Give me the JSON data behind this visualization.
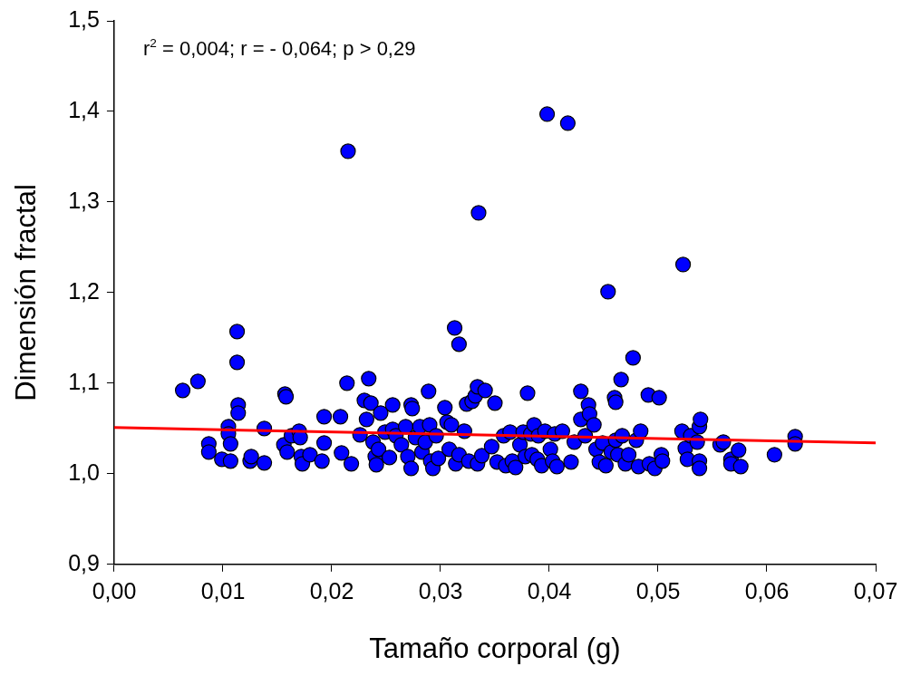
{
  "chart_data": {
    "type": "scatter",
    "xlabel": "Tamaño corporal (g)",
    "ylabel": "Dimensión fractal",
    "annotations": [
      "r$^{2}$ = 0,004; r = - 0,064; p > 0,29"
    ],
    "xlim": [
      0,
      0.07
    ],
    "ylim": [
      0.9,
      1.5
    ],
    "xticks": [
      {
        "value": 0,
        "label": "0,00"
      },
      {
        "value": 0.01,
        "label": "0,01"
      },
      {
        "value": 0.02,
        "label": "0,02"
      },
      {
        "value": 0.03,
        "label": "0,03"
      },
      {
        "value": 0.04,
        "label": "0,04"
      },
      {
        "value": 0.05,
        "label": "0,05"
      },
      {
        "value": 0.06,
        "label": "0,06"
      },
      {
        "value": 0.07,
        "label": "0,07"
      }
    ],
    "yticks": [
      {
        "value": 0.9,
        "label": "0,9"
      },
      {
        "value": 1,
        "label": "1,0"
      },
      {
        "value": 1.1,
        "label": "1,1"
      },
      {
        "value": 1.2,
        "label": "1,2"
      },
      {
        "value": 1.3,
        "label": "1,3"
      },
      {
        "value": 1.4,
        "label": "1,4"
      },
      {
        "value": 1.5,
        "label": "1,5"
      }
    ],
    "grid": false,
    "legend": false,
    "marker": "circle",
    "series": [
      {
        "type": "line",
        "marker": "none",
        "color": "#ff0000",
        "x": [
          0,
          0.07
        ],
        "values": [
          1.051,
          1.034
        ]
      },
      {
        "color": "#0000ff",
        "x": [
          0.0063,
          0.0077,
          0.0087,
          0.0087,
          0.0099,
          0.0105,
          0.0105,
          0.0107,
          0.0107,
          0.0113,
          0.0113,
          0.0114,
          0.0114,
          0.0125,
          0.0126,
          0.0138,
          0.0138,
          0.0157,
          0.0158,
          0.0156,
          0.0159,
          0.0163,
          0.017,
          0.0171,
          0.0172,
          0.0173,
          0.018,
          0.0191,
          0.0193,
          0.0193,
          0.0208,
          0.0209,
          0.0214,
          0.0215,
          0.0218,
          0.0226,
          0.023,
          0.0232,
          0.0234,
          0.0236,
          0.0238,
          0.024,
          0.0241,
          0.0243,
          0.0245,
          0.0249,
          0.0253,
          0.0256,
          0.0256,
          0.0259,
          0.0264,
          0.0268,
          0.027,
          0.0273,
          0.0274,
          0.0273,
          0.0277,
          0.0281,
          0.0283,
          0.0286,
          0.0289,
          0.029,
          0.0291,
          0.0293,
          0.0296,
          0.0298,
          0.0304,
          0.0306,
          0.0308,
          0.031,
          0.0313,
          0.0314,
          0.0317,
          0.0317,
          0.0322,
          0.0324,
          0.0326,
          0.0329,
          0.0332,
          0.0334,
          0.0334,
          0.0335,
          0.0338,
          0.0341,
          0.0347,
          0.035,
          0.0352,
          0.0358,
          0.036,
          0.0364,
          0.0366,
          0.0369,
          0.0373,
          0.0376,
          0.0378,
          0.038,
          0.0383,
          0.0384,
          0.0386,
          0.0389,
          0.039,
          0.0393,
          0.0396,
          0.0398,
          0.0401,
          0.0403,
          0.0405,
          0.0407,
          0.0412,
          0.0417,
          0.042,
          0.0423,
          0.0429,
          0.0429,
          0.0433,
          0.0436,
          0.0437,
          0.0441,
          0.0443,
          0.0446,
          0.0449,
          0.0452,
          0.0454,
          0.0457,
          0.046,
          0.0461,
          0.0461,
          0.0477,
          0.0466,
          0.0463,
          0.0467,
          0.047,
          0.0473,
          0.048,
          0.0482,
          0.0484,
          0.0491,
          0.0492,
          0.0497,
          0.0501,
          0.0503,
          0.0504,
          0.0523,
          0.0522,
          0.0525,
          0.0527,
          0.053,
          0.0536,
          0.0538,
          0.0539,
          0.0538,
          0.0538,
          0.0557,
          0.056,
          0.0567,
          0.0567,
          0.0574,
          0.0576,
          0.0607,
          0.0626,
          0.0626
        ],
        "values": [
          1.092,
          1.102,
          1.033,
          1.024,
          1.016,
          1.052,
          1.044,
          1.033,
          1.014,
          1.157,
          1.123,
          1.076,
          1.067,
          1.014,
          1.019,
          1.05,
          1.012,
          1.088,
          1.085,
          1.032,
          1.024,
          1.042,
          1.047,
          1.04,
          1.019,
          1.011,
          1.021,
          1.014,
          1.063,
          1.034,
          1.063,
          1.023,
          1.1,
          1.356,
          1.011,
          1.043,
          1.081,
          1.06,
          1.105,
          1.078,
          1.035,
          1.019,
          1.01,
          1.027,
          1.067,
          1.046,
          1.018,
          1.076,
          1.049,
          1.042,
          1.032,
          1.052,
          1.019,
          1.076,
          1.072,
          1.006,
          1.04,
          1.052,
          1.024,
          1.035,
          1.091,
          1.054,
          1.014,
          1.006,
          1.042,
          1.017,
          1.073,
          1.057,
          1.027,
          1.054,
          1.161,
          1.011,
          1.021,
          1.143,
          1.047,
          1.077,
          1.014,
          1.08,
          1.086,
          1.011,
          1.096,
          1.288,
          1.02,
          1.092,
          1.03,
          1.078,
          1.013,
          1.042,
          1.009,
          1.046,
          1.014,
          1.007,
          1.032,
          1.046,
          1.019,
          1.089,
          1.044,
          1.021,
          1.054,
          1.016,
          1.042,
          1.009,
          1.047,
          1.397,
          1.027,
          1.014,
          1.044,
          1.008,
          1.047,
          1.387,
          1.013,
          1.035,
          1.091,
          1.06,
          1.042,
          1.076,
          1.066,
          1.054,
          1.027,
          1.013,
          1.034,
          1.009,
          1.201,
          1.024,
          1.084,
          1.079,
          1.037,
          1.128,
          1.104,
          1.021,
          1.042,
          1.011,
          1.021,
          1.037,
          1.008,
          1.047,
          1.087,
          1.011,
          1.006,
          1.084,
          1.021,
          1.014,
          1.231,
          1.047,
          1.028,
          1.016,
          1.042,
          1.035,
          1.052,
          1.06,
          1.014,
          1.006,
          1.032,
          1.035,
          1.016,
          1.011,
          1.026,
          1.008,
          1.021,
          1.041,
          1.033
        ]
      }
    ]
  }
}
